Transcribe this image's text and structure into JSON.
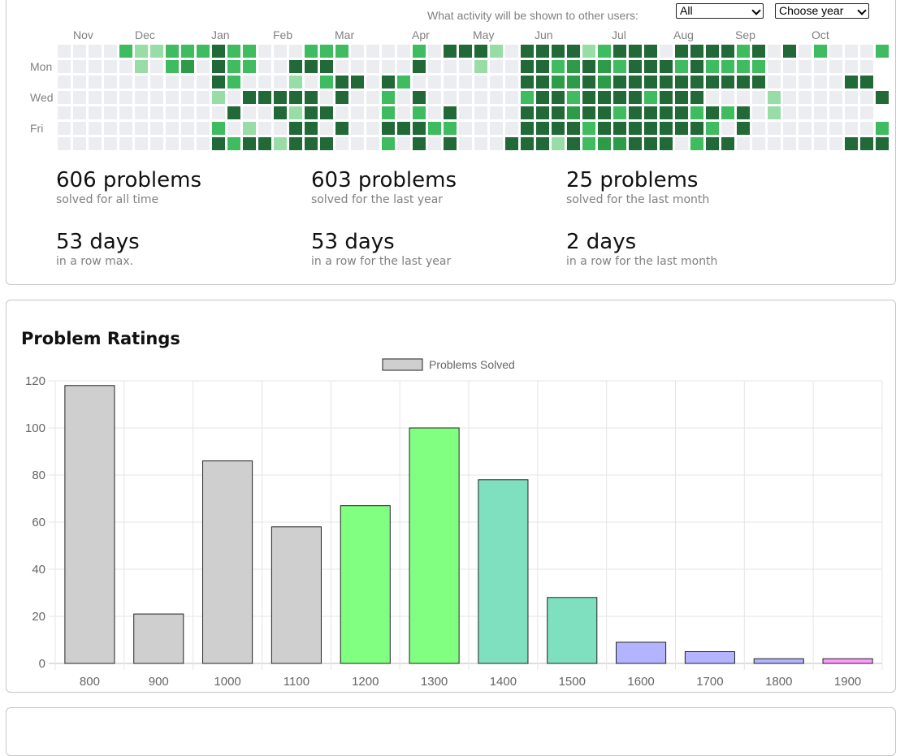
{
  "privacy": {
    "label": "What activity will be shown to other users:",
    "selected": "All",
    "year_select": "Choose year"
  },
  "heatmap": {
    "months": [
      "Nov",
      "Dec",
      "Jan",
      "Feb",
      "Mar",
      "Apr",
      "May",
      "Jun",
      "Jul",
      "Aug",
      "Sep",
      "Oct"
    ],
    "day_labels": [
      "Mon",
      "Wed",
      "Fri"
    ],
    "levels_colors": [
      "#ebedf0",
      "#98dda5",
      "#3ebc5f",
      "#2d9c48",
      "#216a38"
    ],
    "weeks": 53,
    "active": [
      [
        4,
        0,
        2
      ],
      [
        5,
        1,
        1
      ],
      [
        5,
        0,
        1
      ],
      [
        6,
        1,
        0
      ],
      [
        6,
        0,
        1
      ],
      [
        7,
        0,
        2
      ],
      [
        7,
        1,
        2
      ],
      [
        8,
        0,
        2
      ],
      [
        8,
        1,
        3
      ],
      [
        9,
        0,
        2
      ],
      [
        10,
        0,
        4
      ],
      [
        10,
        1,
        4
      ],
      [
        10,
        2,
        4
      ],
      [
        10,
        3,
        1
      ],
      [
        10,
        5,
        2
      ],
      [
        10,
        6,
        4
      ],
      [
        11,
        0,
        2
      ],
      [
        11,
        1,
        2
      ],
      [
        11,
        2,
        2
      ],
      [
        11,
        4,
        4
      ],
      [
        11,
        6,
        2
      ],
      [
        12,
        0,
        2
      ],
      [
        12,
        1,
        2
      ],
      [
        12,
        3,
        4
      ],
      [
        12,
        5,
        1
      ],
      [
        12,
        6,
        4
      ],
      [
        13,
        3,
        4
      ],
      [
        13,
        6,
        4
      ],
      [
        14,
        3,
        4
      ],
      [
        14,
        4,
        4
      ],
      [
        14,
        6,
        1
      ],
      [
        15,
        1,
        4
      ],
      [
        15,
        2,
        1
      ],
      [
        15,
        3,
        4
      ],
      [
        15,
        4,
        1
      ],
      [
        15,
        5,
        4
      ],
      [
        15,
        6,
        4
      ],
      [
        16,
        0,
        2
      ],
      [
        16,
        1,
        4
      ],
      [
        16,
        3,
        4
      ],
      [
        16,
        4,
        4
      ],
      [
        16,
        5,
        4
      ],
      [
        16,
        6,
        4
      ],
      [
        17,
        0,
        2
      ],
      [
        17,
        1,
        4
      ],
      [
        17,
        2,
        2
      ],
      [
        17,
        4,
        4
      ],
      [
        17,
        6,
        4
      ],
      [
        18,
        0,
        2
      ],
      [
        18,
        2,
        4
      ],
      [
        18,
        3,
        4
      ],
      [
        18,
        5,
        4
      ],
      [
        19,
        2,
        4
      ],
      [
        21,
        2,
        4
      ],
      [
        21,
        3,
        2
      ],
      [
        21,
        4,
        2
      ],
      [
        21,
        5,
        4
      ],
      [
        21,
        6,
        2
      ],
      [
        22,
        2,
        2
      ],
      [
        22,
        5,
        4
      ],
      [
        23,
        0,
        2
      ],
      [
        23,
        1,
        4
      ],
      [
        23,
        3,
        4
      ],
      [
        23,
        4,
        2
      ],
      [
        23,
        5,
        4
      ],
      [
        23,
        6,
        4
      ],
      [
        24,
        5,
        2
      ],
      [
        25,
        0,
        4
      ],
      [
        25,
        4,
        4
      ],
      [
        25,
        5,
        2
      ],
      [
        25,
        6,
        4
      ],
      [
        26,
        0,
        4
      ],
      [
        27,
        0,
        4
      ],
      [
        27,
        1,
        1
      ],
      [
        28,
        0,
        1
      ],
      [
        29,
        6,
        4
      ],
      [
        30,
        0,
        4
      ],
      [
        30,
        1,
        4
      ],
      [
        30,
        2,
        4
      ],
      [
        30,
        3,
        2
      ],
      [
        30,
        4,
        4
      ],
      [
        30,
        5,
        4
      ],
      [
        30,
        6,
        4
      ],
      [
        31,
        0,
        4
      ],
      [
        31,
        1,
        4
      ],
      [
        31,
        2,
        4
      ],
      [
        31,
        3,
        4
      ],
      [
        31,
        4,
        4
      ],
      [
        31,
        5,
        4
      ],
      [
        31,
        6,
        4
      ],
      [
        32,
        0,
        4
      ],
      [
        32,
        1,
        2
      ],
      [
        32,
        2,
        3
      ],
      [
        32,
        3,
        4
      ],
      [
        32,
        4,
        4
      ],
      [
        32,
        5,
        4
      ],
      [
        32,
        6,
        1
      ],
      [
        33,
        0,
        4
      ],
      [
        33,
        1,
        3
      ],
      [
        33,
        2,
        3
      ],
      [
        33,
        3,
        2
      ],
      [
        33,
        4,
        3
      ],
      [
        33,
        5,
        4
      ],
      [
        33,
        6,
        4
      ],
      [
        34,
        0,
        1
      ],
      [
        34,
        1,
        4
      ],
      [
        34,
        2,
        4
      ],
      [
        34,
        3,
        4
      ],
      [
        34,
        4,
        4
      ],
      [
        34,
        5,
        2
      ],
      [
        34,
        6,
        2
      ],
      [
        35,
        0,
        2
      ],
      [
        35,
        1,
        3
      ],
      [
        35,
        2,
        3
      ],
      [
        35,
        3,
        4
      ],
      [
        35,
        4,
        4
      ],
      [
        35,
        5,
        4
      ],
      [
        35,
        6,
        3
      ],
      [
        36,
        0,
        4
      ],
      [
        36,
        1,
        2
      ],
      [
        36,
        2,
        4
      ],
      [
        36,
        3,
        4
      ],
      [
        36,
        4,
        2
      ],
      [
        36,
        5,
        4
      ],
      [
        36,
        6,
        3
      ],
      [
        37,
        0,
        4
      ],
      [
        37,
        1,
        4
      ],
      [
        37,
        2,
        4
      ],
      [
        37,
        3,
        4
      ],
      [
        37,
        4,
        4
      ],
      [
        37,
        5,
        4
      ],
      [
        37,
        6,
        4
      ],
      [
        38,
        0,
        4
      ],
      [
        38,
        1,
        4
      ],
      [
        38,
        2,
        4
      ],
      [
        38,
        3,
        2
      ],
      [
        38,
        4,
        4
      ],
      [
        38,
        5,
        4
      ],
      [
        38,
        6,
        4
      ],
      [
        39,
        1,
        4
      ],
      [
        39,
        2,
        4
      ],
      [
        39,
        3,
        4
      ],
      [
        39,
        4,
        4
      ],
      [
        39,
        5,
        4
      ],
      [
        39,
        6,
        4
      ],
      [
        40,
        0,
        4
      ],
      [
        40,
        1,
        2
      ],
      [
        40,
        2,
        4
      ],
      [
        40,
        3,
        4
      ],
      [
        40,
        4,
        4
      ],
      [
        40,
        5,
        4
      ],
      [
        41,
        0,
        4
      ],
      [
        41,
        1,
        4
      ],
      [
        41,
        2,
        4
      ],
      [
        41,
        3,
        4
      ],
      [
        41,
        4,
        2
      ],
      [
        41,
        5,
        4
      ],
      [
        41,
        6,
        2
      ],
      [
        42,
        0,
        4
      ],
      [
        42,
        1,
        2
      ],
      [
        42,
        2,
        4
      ],
      [
        42,
        4,
        4
      ],
      [
        42,
        5,
        2
      ],
      [
        42,
        6,
        4
      ],
      [
        43,
        0,
        4
      ],
      [
        43,
        1,
        2
      ],
      [
        43,
        2,
        4
      ],
      [
        43,
        4,
        2
      ],
      [
        43,
        6,
        4
      ],
      [
        44,
        0,
        2
      ],
      [
        44,
        1,
        2
      ],
      [
        44,
        2,
        4
      ],
      [
        44,
        4,
        4
      ],
      [
        44,
        5,
        4
      ],
      [
        45,
        0,
        4
      ],
      [
        45,
        1,
        2
      ],
      [
        45,
        2,
        4
      ],
      [
        46,
        3,
        1
      ],
      [
        46,
        4,
        1
      ],
      [
        47,
        0,
        4
      ],
      [
        49,
        0,
        2
      ],
      [
        51,
        2,
        4
      ],
      [
        52,
        2,
        4
      ],
      [
        51,
        6,
        4
      ],
      [
        52,
        6,
        4
      ],
      [
        53,
        6,
        4
      ],
      [
        53,
        0,
        2
      ],
      [
        53,
        3,
        4
      ],
      [
        53,
        5,
        2
      ]
    ]
  },
  "stats": [
    {
      "num": "606 problems",
      "sub": "solved for all time"
    },
    {
      "num": "603 problems",
      "sub": "solved for the last year"
    },
    {
      "num": "25 problems",
      "sub": "solved for the last month"
    },
    {
      "num": "53 days",
      "sub": "in a row max."
    },
    {
      "num": "53 days",
      "sub": "in a row for the last year"
    },
    {
      "num": "2 days",
      "sub": "in a row for the last month"
    }
  ],
  "ratings": {
    "title": "Problem Ratings"
  },
  "chart_data": {
    "type": "bar",
    "title": "Problem Ratings",
    "categories": [
      "800",
      "900",
      "1000",
      "1100",
      "1200",
      "1300",
      "1400",
      "1500",
      "1600",
      "1700",
      "1800",
      "1900"
    ],
    "series": [
      {
        "name": "Problems Solved",
        "values": [
          118,
          21,
          86,
          58,
          67,
          100,
          78,
          28,
          9,
          5,
          2,
          2
        ]
      }
    ],
    "colors": [
      "#cfcfcf",
      "#cfcfcf",
      "#cfcfcf",
      "#cfcfcf",
      "#80ff80",
      "#80ff80",
      "#7fe0c0",
      "#7fe0c0",
      "#b3b3ff",
      "#b3b3ff",
      "#b3b3ff",
      "#ff99ff"
    ],
    "ylim": [
      0,
      120
    ],
    "yticks": [
      0,
      20,
      40,
      60,
      80,
      100,
      120
    ],
    "legend": "top-center",
    "grid": true
  }
}
